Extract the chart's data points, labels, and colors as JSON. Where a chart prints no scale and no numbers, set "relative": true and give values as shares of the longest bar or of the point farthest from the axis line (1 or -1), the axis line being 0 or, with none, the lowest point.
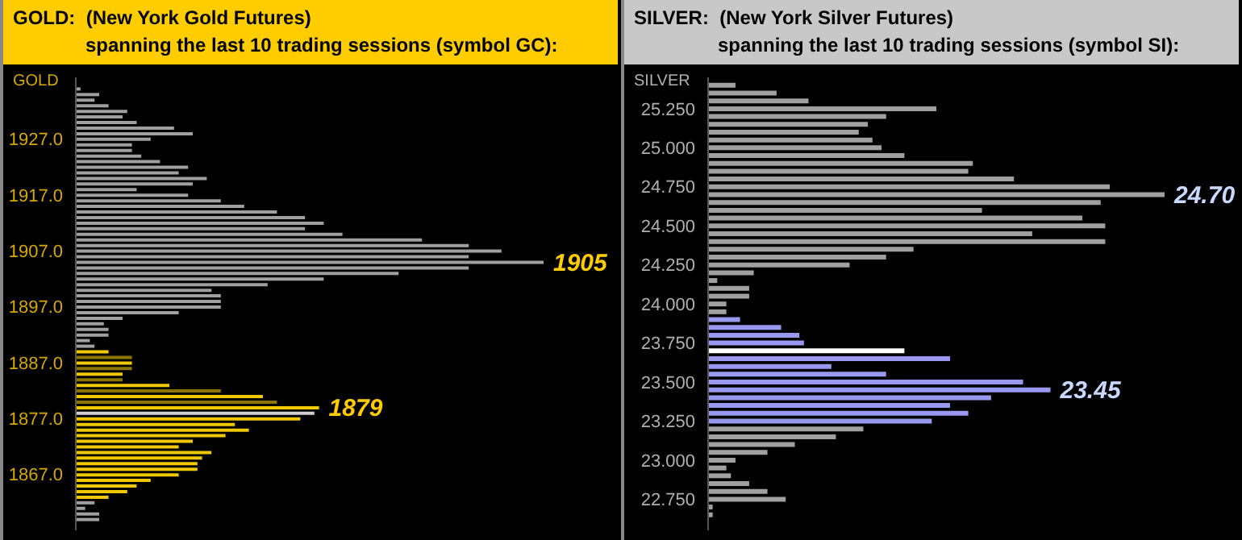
{
  "chart_data": [
    {
      "type": "bar",
      "orientation": "horizontal",
      "relative": true,
      "title": "GOLD:  (New York Gold Futures)",
      "subtitle": "spanning the last 10 trading sessions (symbol GC):",
      "ylabel": "GOLD",
      "x": [
        1936,
        1935,
        1934,
        1933,
        1932,
        1931,
        1930,
        1929,
        1928,
        1927,
        1926,
        1925,
        1924,
        1923,
        1922,
        1921,
        1920,
        1919,
        1918,
        1917,
        1916,
        1915,
        1914,
        1913,
        1912,
        1911,
        1910,
        1909,
        1908,
        1907,
        1906,
        1905,
        1904,
        1903,
        1902,
        1901,
        1900,
        1899,
        1898,
        1897,
        1896,
        1895,
        1894,
        1893,
        1892,
        1891,
        1890,
        1889,
        1888,
        1887,
        1886,
        1885,
        1884,
        1883,
        1882,
        1881,
        1880,
        1879,
        1878,
        1877,
        1876,
        1875,
        1874,
        1873,
        1872,
        1871,
        1870,
        1869,
        1868,
        1867,
        1866,
        1865,
        1864,
        1863,
        1862,
        1861,
        1860,
        1859
      ],
      "values": [
        0.01,
        0.05,
        0.04,
        0.07,
        0.11,
        0.1,
        0.13,
        0.21,
        0.25,
        0.16,
        0.12,
        0.12,
        0.14,
        0.18,
        0.24,
        0.22,
        0.28,
        0.25,
        0.13,
        0.24,
        0.31,
        0.36,
        0.43,
        0.49,
        0.53,
        0.49,
        0.57,
        0.74,
        0.84,
        0.91,
        0.84,
        1,
        0.84,
        0.69,
        0.53,
        0.41,
        0.29,
        0.31,
        0.31,
        0.31,
        0.22,
        0.1,
        0.06,
        0.07,
        0.07,
        0.03,
        0.04,
        0.07,
        0.12,
        0.12,
        0.12,
        0.1,
        0.1,
        0.2,
        0.31,
        0.4,
        0.43,
        0.52,
        0.51,
        0.48,
        0.34,
        0.37,
        0.32,
        0.25,
        0.22,
        0.29,
        0.27,
        0.26,
        0.26,
        0.22,
        0.16,
        0.13,
        0.11,
        0.07,
        0.04,
        0.02,
        0.05,
        0.05
      ],
      "colors": [
        "#a0a0a0",
        "#a0a0a0",
        "#a0a0a0",
        "#a0a0a0",
        "#a0a0a0",
        "#a0a0a0",
        "#a0a0a0",
        "#a0a0a0",
        "#a0a0a0",
        "#a0a0a0",
        "#a0a0a0",
        "#a0a0a0",
        "#a0a0a0",
        "#a0a0a0",
        "#a0a0a0",
        "#a0a0a0",
        "#a0a0a0",
        "#a0a0a0",
        "#a0a0a0",
        "#a0a0a0",
        "#a0a0a0",
        "#a0a0a0",
        "#a0a0a0",
        "#a0a0a0",
        "#a0a0a0",
        "#a0a0a0",
        "#a0a0a0",
        "#a0a0a0",
        "#a0a0a0",
        "#a0a0a0",
        "#a0a0a0",
        "#a0a0a0",
        "#a0a0a0",
        "#a0a0a0",
        "#a0a0a0",
        "#a0a0a0",
        "#a0a0a0",
        "#a0a0a0",
        "#a0a0a0",
        "#a0a0a0",
        "#a0a0a0",
        "#a0a0a0",
        "#a0a0a0",
        "#a0a0a0",
        "#a0a0a0",
        "#a0a0a0",
        "#a0a0a0",
        "#f0c800",
        "#8c7400",
        "#f0c800",
        "#8c7400",
        "#f0c800",
        "#8c7400",
        "#f0c800",
        "#8c7400",
        "#f0c800",
        "#8c7400",
        "#f0c800",
        "#d0d0d0",
        "#f0c800",
        "#f0c800",
        "#f0c800",
        "#f0c800",
        "#f0c800",
        "#f0c800",
        "#f0c800",
        "#f0c800",
        "#f0c800",
        "#f0c800",
        "#f0c800",
        "#f0c800",
        "#f0c800",
        "#f0c800",
        "#f0c800",
        "#a0a0a0",
        "#a0a0a0",
        "#a0a0a0",
        "#a0a0a0"
      ],
      "ylim": [
        1857,
        1938
      ],
      "yticks": [
        {
          "value": 1867,
          "label": "1867.0"
        },
        {
          "value": 1877,
          "label": "1877.0"
        },
        {
          "value": 1887,
          "label": "1887.0"
        },
        {
          "value": 1897,
          "label": "1897.0"
        },
        {
          "value": 1907,
          "label": "1907.0"
        },
        {
          "value": 1917,
          "label": "1917.0"
        },
        {
          "value": 1927,
          "label": "1927.0"
        }
      ],
      "annotations": [
        {
          "text": "1905",
          "x": 1,
          "y": 1905
        },
        {
          "text": "1879",
          "x": 0.52,
          "y": 1879
        }
      ]
    },
    {
      "type": "bar",
      "orientation": "horizontal",
      "relative": true,
      "title": "SILVER:  (New York Silver Futures)",
      "subtitle": "spanning the last 10 trading sessions (symbol SI):",
      "ylabel": "SILVER",
      "x": [
        25.4,
        25.35,
        25.3,
        25.25,
        25.2,
        25.15,
        25.1,
        25.05,
        25.0,
        24.95,
        24.9,
        24.85,
        24.8,
        24.75,
        24.7,
        24.65,
        24.6,
        24.55,
        24.5,
        24.45,
        24.4,
        24.35,
        24.3,
        24.25,
        24.2,
        24.15,
        24.1,
        24.05,
        24.0,
        23.95,
        23.9,
        23.85,
        23.8,
        23.75,
        23.7,
        23.65,
        23.6,
        23.55,
        23.5,
        23.45,
        23.4,
        23.35,
        23.3,
        23.25,
        23.2,
        23.15,
        23.1,
        23.05,
        23.0,
        22.95,
        22.9,
        22.85,
        22.8,
        22.75,
        22.7,
        22.65
      ],
      "values": [
        0.06,
        0.15,
        0.22,
        0.5,
        0.39,
        0.35,
        0.33,
        0.36,
        0.38,
        0.43,
        0.58,
        0.57,
        0.67,
        0.88,
        1,
        0.86,
        0.6,
        0.82,
        0.87,
        0.71,
        0.87,
        0.45,
        0.39,
        0.31,
        0.1,
        0.02,
        0.09,
        0.09,
        0.04,
        0.04,
        0.07,
        0.16,
        0.2,
        0.21,
        0.43,
        0.53,
        0.27,
        0.39,
        0.69,
        0.75,
        0.62,
        0.53,
        0.57,
        0.49,
        0.34,
        0.28,
        0.19,
        0.13,
        0.06,
        0.04,
        0.05,
        0.09,
        0.13,
        0.17,
        0.01,
        0.01
      ],
      "colors": [
        "#a0a0a0",
        "#a0a0a0",
        "#a0a0a0",
        "#a0a0a0",
        "#a0a0a0",
        "#a0a0a0",
        "#a0a0a0",
        "#a0a0a0",
        "#a0a0a0",
        "#a0a0a0",
        "#a0a0a0",
        "#a0a0a0",
        "#a0a0a0",
        "#a0a0a0",
        "#a0a0a0",
        "#a0a0a0",
        "#a0a0a0",
        "#a0a0a0",
        "#a0a0a0",
        "#a0a0a0",
        "#a0a0a0",
        "#a0a0a0",
        "#a0a0a0",
        "#a0a0a0",
        "#a0a0a0",
        "#a0a0a0",
        "#a0a0a0",
        "#a0a0a0",
        "#a0a0a0",
        "#a0a0a0",
        "#9898f0",
        "#9898f0",
        "#9898f0",
        "#9898f0",
        "#ffffff",
        "#9898f0",
        "#9898f0",
        "#9898f0",
        "#9898f0",
        "#9898f0",
        "#9898f0",
        "#9898f0",
        "#9898f0",
        "#9898f0",
        "#a0a0a0",
        "#a0a0a0",
        "#a0a0a0",
        "#a0a0a0",
        "#a0a0a0",
        "#a0a0a0",
        "#a0a0a0",
        "#a0a0a0",
        "#a0a0a0",
        "#a0a0a0",
        "#a0a0a0",
        "#a0a0a0"
      ],
      "ylim": [
        22.55,
        25.45
      ],
      "yticks": [
        {
          "value": 22.75,
          "label": "22.750"
        },
        {
          "value": 23,
          "label": "23.000"
        },
        {
          "value": 23.25,
          "label": "23.250"
        },
        {
          "value": 23.5,
          "label": "23.500"
        },
        {
          "value": 23.75,
          "label": "23.750"
        },
        {
          "value": 24,
          "label": "24.000"
        },
        {
          "value": 24.25,
          "label": "24.250"
        },
        {
          "value": 24.5,
          "label": "24.500"
        },
        {
          "value": 24.75,
          "label": "24.750"
        },
        {
          "value": 25,
          "label": "25.000"
        },
        {
          "value": 25.25,
          "label": "25.250"
        }
      ],
      "annotations": [
        {
          "text": "24.70",
          "x": 1,
          "y": 24.7
        },
        {
          "text": "23.45",
          "x": 0.75,
          "y": 23.45
        }
      ]
    }
  ]
}
